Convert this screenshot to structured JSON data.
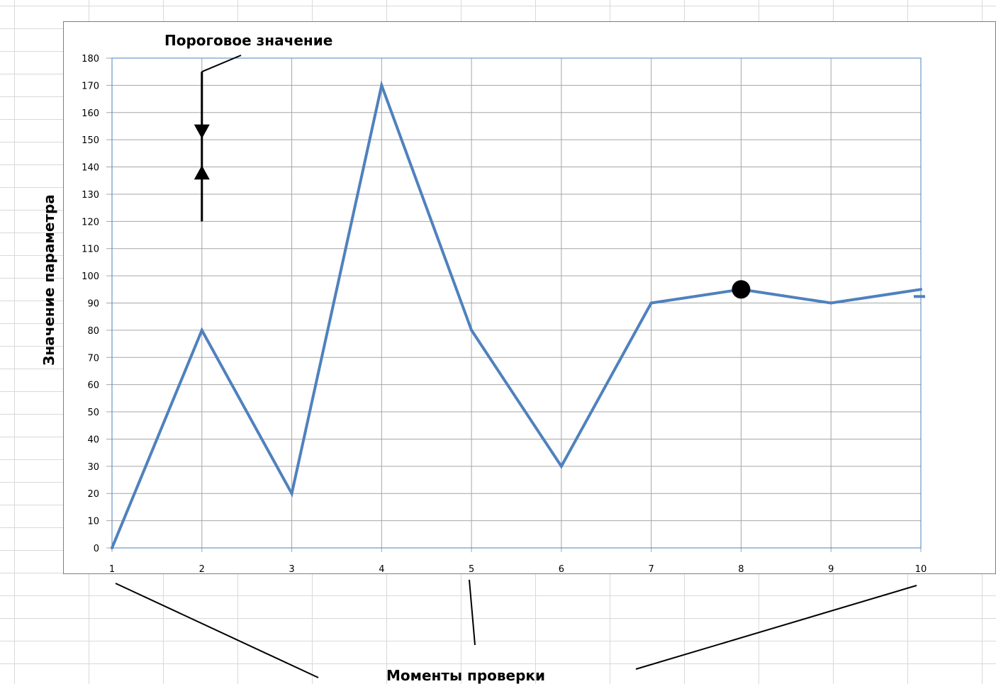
{
  "chart_data": {
    "type": "line",
    "title": "",
    "xlabel": "Моменты проверки",
    "ylabel": "Значение параметра",
    "categories": [
      "1",
      "2",
      "3",
      "4",
      "5",
      "6",
      "7",
      "8",
      "9",
      "10"
    ],
    "series": [
      {
        "values": [
          0,
          80,
          20,
          170,
          80,
          30,
          90,
          95,
          90,
          95
        ],
        "color": "#4f81bd"
      }
    ],
    "ylim": [
      0,
      180
    ],
    "ytick_step": 10,
    "grid": true,
    "annotations": {
      "threshold_label": "Пороговое значение",
      "threshold_range": [
        120,
        175
      ],
      "marked_point": {
        "x": "8",
        "y": 95
      }
    }
  },
  "colors": {
    "series": "#4f81bd",
    "grid": "#a6a6a6",
    "plot_border": "#4f81bd",
    "annotation": "#000000"
  }
}
